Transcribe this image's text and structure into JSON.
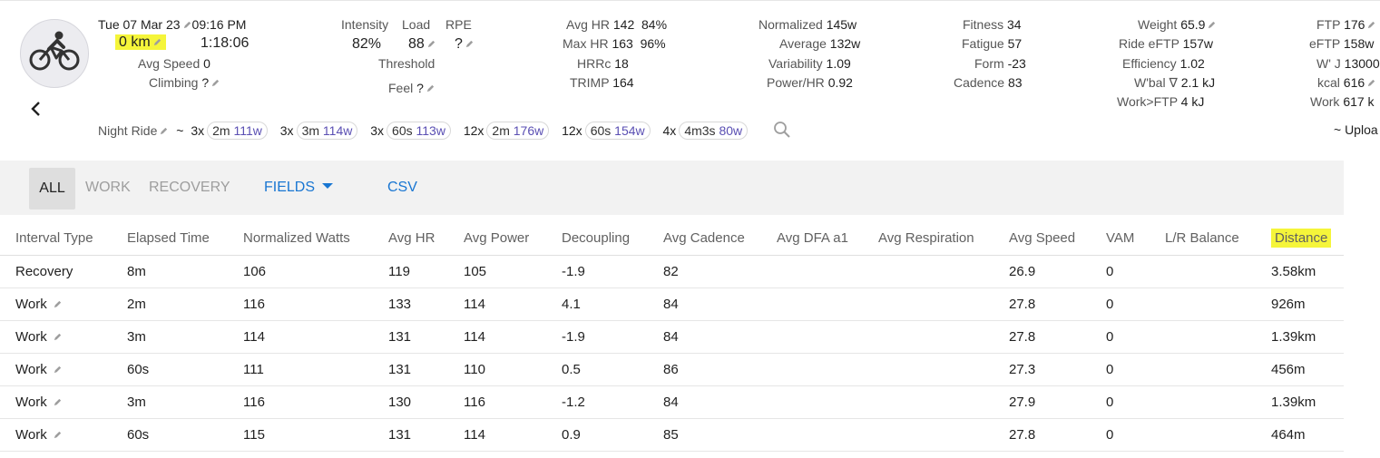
{
  "activity": {
    "datetime": "Tue 07 Mar 23",
    "time": "09:16 PM",
    "distance": "0 km",
    "duration": "1:18:06",
    "avg_speed_label": "Avg Speed",
    "avg_speed": "0",
    "climbing_label": "Climbing",
    "climbing": "?"
  },
  "load": {
    "intensity_label": "Intensity",
    "load_label": "Load",
    "rpe_label": "RPE",
    "intensity": "82%",
    "load": "88",
    "rpe": "?",
    "threshold_label": "Threshold",
    "feel_label": "Feel",
    "feel": "?"
  },
  "hr": {
    "avg_label": "Avg HR",
    "avg": "142",
    "avg_pct": "84%",
    "max_label": "Max HR",
    "max": "163",
    "max_pct": "96%",
    "hrrc_label": "HRRc",
    "hrrc": "18",
    "trimp_label": "TRIMP",
    "trimp": "164"
  },
  "power": {
    "normalized_label": "Normalized",
    "normalized": "145w",
    "average_label": "Average",
    "average": "132w",
    "variability_label": "Variability",
    "variability": "1.09",
    "phr_label": "Power/HR",
    "phr": "0.92"
  },
  "fitness": {
    "fitness_label": "Fitness",
    "fitness": "34",
    "fatigue_label": "Fatigue",
    "fatigue": "57",
    "form_label": "Form",
    "form": "-23",
    "cadence_label": "Cadence",
    "cadence": "83"
  },
  "rider": {
    "weight_label": "Weight",
    "weight": "65.9",
    "eftp_label": "Ride eFTP",
    "eftp": "157w",
    "efficiency_label": "Efficiency",
    "efficiency": "1.02",
    "wbal_label": "W'bal ∇",
    "wbal": "2.1 kJ",
    "workftp_label": "Work>FTP",
    "workftp": "4 kJ"
  },
  "ftp": {
    "ftp_label": "FTP",
    "ftp": "176",
    "eftp_label": "eFTP",
    "eftp": "158w",
    "wj_label": "W' J",
    "wj": "13000",
    "kcal_label": "kcal",
    "kcal": "616",
    "work_label": "Work",
    "work": "617 k",
    "upload": "~ Uploa"
  },
  "intervals_summary": {
    "name": "Night Ride",
    "tilde": "~",
    "groups": [
      {
        "reps": "3x",
        "dur": "2m",
        "watts": "111w"
      },
      {
        "reps": "3x",
        "dur": "3m",
        "watts": "114w"
      },
      {
        "reps": "3x",
        "dur": "60s",
        "watts": "113w"
      },
      {
        "reps": "12x",
        "dur": "2m",
        "watts": "176w"
      },
      {
        "reps": "12x",
        "dur": "60s",
        "watts": "154w"
      },
      {
        "reps": "4x",
        "dur": "4m3s",
        "watts": "80w"
      }
    ]
  },
  "toolbar": {
    "all": "ALL",
    "work": "WORK",
    "recovery": "RECOVERY",
    "fields": "FIELDS",
    "csv": "CSV"
  },
  "table": {
    "columns": [
      "Interval Type",
      "Elapsed Time",
      "Normalized Watts",
      "Avg HR",
      "Avg Power",
      "Decoupling",
      "Avg Cadence",
      "Avg DFA a1",
      "Avg Respiration",
      "Avg Speed",
      "VAM",
      "L/R Balance",
      "Distance"
    ],
    "rows": [
      [
        "Recovery",
        "8m",
        "106",
        "119",
        "105",
        "-1.9",
        "82",
        "",
        "",
        "26.9",
        "0",
        "",
        "3.58km"
      ],
      [
        "Work",
        "2m",
        "116",
        "133",
        "114",
        "4.1",
        "84",
        "",
        "",
        "27.8",
        "0",
        "",
        "926m"
      ],
      [
        "Work",
        "3m",
        "114",
        "131",
        "114",
        "-1.9",
        "84",
        "",
        "",
        "27.8",
        "0",
        "",
        "1.39km"
      ],
      [
        "Work",
        "60s",
        "111",
        "131",
        "110",
        "0.5",
        "86",
        "",
        "",
        "27.3",
        "0",
        "",
        "456m"
      ],
      [
        "Work",
        "3m",
        "116",
        "130",
        "116",
        "-1.2",
        "84",
        "",
        "",
        "27.9",
        "0",
        "",
        "1.39km"
      ],
      [
        "Work",
        "60s",
        "115",
        "131",
        "114",
        "0.9",
        "85",
        "",
        "",
        "27.8",
        "0",
        "",
        "464m"
      ]
    ]
  }
}
